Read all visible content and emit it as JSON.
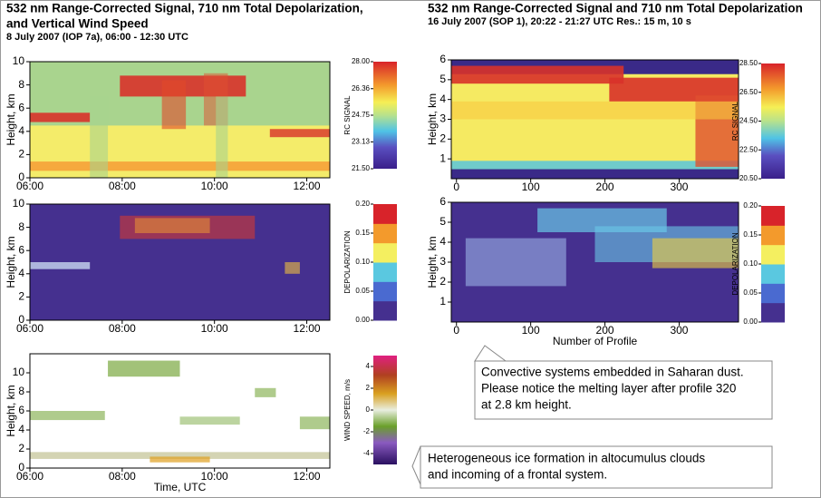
{
  "chart_data": [
    {
      "type": "heatmap",
      "title": [
        "532 nm Range-Corrected Signal, 710 nm Total Depolarization,",
        "and Vertical Wind Speed"
      ],
      "subtitle": "8 July 2007 (IOP 7a), 06:00 - 12:30 UTC",
      "ylabel": "Height, km",
      "xlim": [
        6,
        12.5
      ],
      "xticks": [
        {
          "value": 6,
          "label": "06:00"
        },
        {
          "value": 8,
          "label": "08:00"
        },
        {
          "value": 10,
          "label": "10:00"
        },
        {
          "value": 12,
          "label": "12:00"
        }
      ],
      "ylim": [
        0,
        10
      ],
      "yticks": [
        0,
        2,
        4,
        6,
        8,
        10
      ],
      "colorbar_label": "RC SIGNAL",
      "clim": [
        21.5,
        28
      ],
      "cticks": [
        {
          "value": 21.5,
          "label": "21.50"
        },
        {
          "value": 23.13,
          "label": "23.13"
        },
        {
          "value": 24.75,
          "label": "24.75"
        },
        {
          "value": 26.36,
          "label": "26.36"
        },
        {
          "value": 28,
          "label": "28.00"
        }
      ]
    },
    {
      "type": "heatmap",
      "ylabel": "Height, km",
      "xlim": [
        6,
        12.5
      ],
      "xticks": [
        {
          "value": 6,
          "label": "06:00"
        },
        {
          "value": 8,
          "label": "08:00"
        },
        {
          "value": 10,
          "label": "10:00"
        },
        {
          "value": 12,
          "label": "12:00"
        }
      ],
      "ylim": [
        0,
        10
      ],
      "yticks": [
        0,
        2,
        4,
        6,
        8,
        10
      ],
      "colorbar_label": "DEPOLARIZATION",
      "clim": [
        0,
        0.2
      ],
      "cticks": [
        {
          "value": 0,
          "label": "0.00"
        },
        0.05,
        {
          "value": 0.1,
          "label": "0.10"
        },
        0.15,
        {
          "value": 0.2,
          "label": "0.20"
        }
      ]
    },
    {
      "type": "heatmap",
      "ylabel": "Height, km",
      "xlabel": "Time, UTC",
      "xlim": [
        6,
        12.5
      ],
      "xticks": [
        {
          "value": 6,
          "label": "06:00"
        },
        {
          "value": 8,
          "label": "08:00"
        },
        {
          "value": 10,
          "label": "10:00"
        },
        {
          "value": 12,
          "label": "12:00"
        }
      ],
      "ylim": [
        0,
        12
      ],
      "yticks": [
        0,
        2,
        4,
        6,
        8,
        10
      ],
      "colorbar_label": "WIND SPEED, m/s",
      "clim": [
        -5,
        5
      ],
      "cticks": [
        -4,
        -2,
        0,
        2,
        4
      ]
    },
    {
      "type": "heatmap",
      "title": [
        "532 nm Range-Corrected Signal and 710 nm Total Depolarization"
      ],
      "subtitle": "16 July 2007 (SOP 1), 20:22 - 21:27 UTC Res.: 15 m, 10 s",
      "ylabel": "Height, km",
      "xlim": [
        -7,
        380
      ],
      "xticks": [
        0,
        100,
        200,
        300
      ],
      "ylim": [
        0,
        6
      ],
      "yticks": [
        1,
        2,
        3,
        4,
        5,
        6
      ],
      "colorbar_label": "RC SIGNAL",
      "clim": [
        20.5,
        28.5
      ],
      "cticks": [
        {
          "value": 20.5,
          "label": "20.50"
        },
        {
          "value": 22.5,
          "label": "22.50"
        },
        {
          "value": 24.5,
          "label": "24.50"
        },
        {
          "value": 26.5,
          "label": "26.50"
        },
        {
          "value": 28.5,
          "label": "28.50"
        }
      ]
    },
    {
      "type": "heatmap",
      "ylabel": "Height, km",
      "xlabel": "Number of Profile",
      "xlim": [
        -7,
        380
      ],
      "xticks": [
        0,
        100,
        200,
        300
      ],
      "ylim": [
        0,
        6
      ],
      "yticks": [
        1,
        2,
        3,
        4,
        5,
        6
      ],
      "colorbar_label": "DEPOLARIZATION",
      "clim": [
        0,
        0.2
      ],
      "cticks": [
        {
          "value": 0,
          "label": "0.00"
        },
        0.05,
        {
          "value": 0.1,
          "label": "0.10"
        },
        0.15,
        {
          "value": 0.2,
          "label": "0.20"
        }
      ]
    }
  ],
  "annotations": [
    [
      "Convective systems embedded in Saharan dust.",
      "Please notice the melting layer after profile 320",
      "at 2.8 km height."
    ],
    [
      "Heterogeneous ice formation in altocumulus clouds",
      "and incoming of a frontal system."
    ]
  ]
}
